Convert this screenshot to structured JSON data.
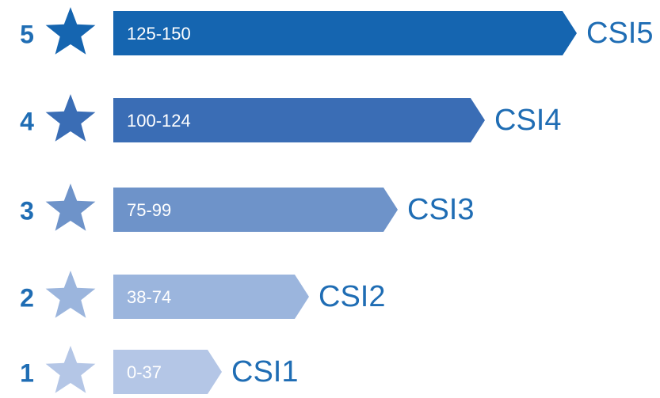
{
  "rows": [
    {
      "rank": "5",
      "range": "125-150",
      "label": "CSI5"
    },
    {
      "rank": "4",
      "range": "100-124",
      "label": "CSI4"
    },
    {
      "rank": "3",
      "range": "75-99",
      "label": "CSI3"
    },
    {
      "rank": "2",
      "range": "38-74",
      "label": "CSI2"
    },
    {
      "rank": "1",
      "range": "0-37",
      "label": "CSI1"
    }
  ]
}
